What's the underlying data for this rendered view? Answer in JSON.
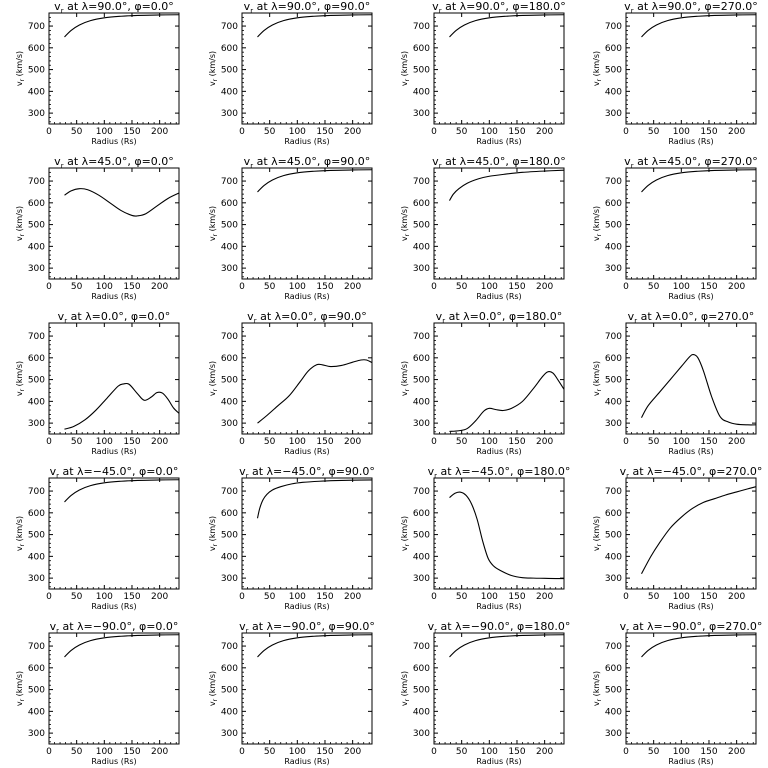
{
  "chart_data": {
    "type": "line",
    "layout": "grid of 5 rows x 4 columns",
    "panel_defaults": {
      "xlabel": "Radius (Rs)",
      "ylabel": "v_r (km/s)",
      "xlim": [
        0,
        235
      ],
      "ylim": [
        250,
        760
      ],
      "xticks": [
        0,
        50,
        100,
        150,
        200
      ],
      "yticks": [
        300,
        400,
        500,
        600,
        700
      ],
      "grid": false,
      "legend": "none"
    },
    "panels": [
      {
        "title": "v_r at λ=90.0°, φ=0.0°",
        "lambda": "90.0",
        "phi": "0.0",
        "x": [
          28,
          40,
          55,
          75,
          100,
          130,
          160,
          200,
          235
        ],
        "y": [
          650,
          680,
          705,
          725,
          738,
          745,
          749,
          751,
          752
        ]
      },
      {
        "title": "v_r at λ=90.0°, φ=90.0°",
        "lambda": "90.0",
        "phi": "90.0",
        "x": [
          28,
          40,
          55,
          75,
          100,
          130,
          160,
          200,
          235
        ],
        "y": [
          650,
          680,
          705,
          725,
          738,
          745,
          749,
          751,
          752
        ]
      },
      {
        "title": "v_r at λ=90.0°, φ=180.0°",
        "lambda": "90.0",
        "phi": "180.0",
        "x": [
          28,
          40,
          55,
          75,
          100,
          130,
          160,
          200,
          235
        ],
        "y": [
          650,
          680,
          705,
          725,
          738,
          745,
          749,
          751,
          752
        ]
      },
      {
        "title": "v_r at λ=90.0°, φ=270.0°",
        "lambda": "90.0",
        "phi": "270.0",
        "x": [
          28,
          40,
          55,
          75,
          100,
          130,
          160,
          200,
          235
        ],
        "y": [
          650,
          680,
          705,
          725,
          738,
          745,
          749,
          751,
          752
        ]
      },
      {
        "title": "v_r at λ=45.0°, φ=0.0°",
        "lambda": "45.0",
        "phi": "0.0",
        "x": [
          28,
          40,
          55,
          70,
          90,
          110,
          130,
          150,
          160,
          175,
          195,
          215,
          235
        ],
        "y": [
          635,
          655,
          665,
          660,
          635,
          600,
          565,
          542,
          540,
          550,
          585,
          620,
          645
        ]
      },
      {
        "title": "v_r at λ=45.0°, φ=90.0°",
        "lambda": "45.0",
        "phi": "90.0",
        "x": [
          28,
          40,
          55,
          75,
          100,
          130,
          160,
          200,
          235
        ],
        "y": [
          650,
          680,
          705,
          725,
          738,
          745,
          749,
          751,
          752
        ]
      },
      {
        "title": "v_r at λ=45.0°, φ=180.0°",
        "lambda": "45.0",
        "phi": "180.0",
        "x": [
          28,
          35,
          45,
          60,
          80,
          100,
          130,
          160,
          200,
          235
        ],
        "y": [
          610,
          640,
          665,
          690,
          710,
          722,
          732,
          740,
          746,
          750
        ]
      },
      {
        "title": "v_r at λ=45.0°, φ=270.0°",
        "lambda": "45.0",
        "phi": "270.0",
        "x": [
          28,
          40,
          55,
          75,
          100,
          130,
          160,
          200,
          235
        ],
        "y": [
          650,
          680,
          705,
          725,
          738,
          745,
          749,
          751,
          752
        ]
      },
      {
        "title": "v_r at λ=0.0°, φ=0.0°",
        "lambda": "0.0",
        "phi": "0.0",
        "x": [
          28,
          45,
          65,
          85,
          105,
          125,
          135,
          145,
          160,
          172,
          185,
          195,
          205,
          215,
          225,
          235
        ],
        "y": [
          272,
          285,
          315,
          360,
          415,
          470,
          480,
          478,
          435,
          405,
          420,
          440,
          438,
          410,
          370,
          345
        ]
      },
      {
        "title": "v_r at λ=0.0°, φ=90.0°",
        "lambda": "0.0",
        "phi": "90.0",
        "x": [
          28,
          45,
          65,
          85,
          105,
          120,
          135,
          145,
          160,
          180,
          200,
          215,
          225,
          235
        ],
        "y": [
          300,
          335,
          380,
          425,
          490,
          540,
          568,
          568,
          560,
          565,
          580,
          590,
          590,
          578
        ]
      },
      {
        "title": "v_r at λ=0.0°, φ=180.0°",
        "lambda": "0.0",
        "phi": "180.0",
        "x": [
          28,
          45,
          60,
          75,
          90,
          100,
          112,
          125,
          140,
          160,
          180,
          195,
          205,
          215,
          225,
          235
        ],
        "y": [
          262,
          265,
          275,
          310,
          355,
          368,
          362,
          358,
          368,
          400,
          460,
          510,
          535,
          530,
          495,
          455
        ]
      },
      {
        "title": "v_r at λ=0.0°, φ=270.0°",
        "lambda": "0.0",
        "phi": "270.0",
        "x": [
          28,
          40,
          60,
          80,
          100,
          115,
          122,
          130,
          140,
          155,
          170,
          185,
          200,
          220,
          235
        ],
        "y": [
          325,
          380,
          440,
          500,
          560,
          605,
          615,
          600,
          540,
          420,
          330,
          305,
          295,
          292,
          292
        ]
      },
      {
        "title": "v_r at λ=−45.0°, φ=0.0°",
        "lambda": "−45.0",
        "phi": "0.0",
        "x": [
          28,
          40,
          55,
          75,
          100,
          130,
          160,
          200,
          235
        ],
        "y": [
          650,
          680,
          705,
          725,
          738,
          745,
          749,
          751,
          752
        ]
      },
      {
        "title": "v_r at λ=−45.0°, φ=90.0°",
        "lambda": "−45.0",
        "phi": "90.0",
        "x": [
          28,
          32,
          38,
          45,
          55,
          70,
          90,
          110,
          140,
          170,
          200,
          235
        ],
        "y": [
          575,
          620,
          660,
          685,
          705,
          720,
          733,
          740,
          745,
          748,
          750,
          751
        ]
      },
      {
        "title": "v_r at λ=−45.0°, φ=180.0°",
        "lambda": "−45.0",
        "phi": "180.0",
        "x": [
          28,
          38,
          48,
          58,
          68,
          78,
          88,
          98,
          108,
          120,
          140,
          160,
          180,
          200,
          220,
          235
        ],
        "y": [
          670,
          690,
          695,
          680,
          640,
          570,
          470,
          390,
          355,
          335,
          312,
          302,
          300,
          299,
          298,
          298
        ]
      },
      {
        "title": "v_r at λ=−45.0°, φ=270.0°",
        "lambda": "−45.0",
        "phi": "270.0",
        "x": [
          28,
          45,
          60,
          80,
          100,
          120,
          140,
          160,
          180,
          200,
          220,
          235
        ],
        "y": [
          320,
          400,
          460,
          530,
          580,
          620,
          648,
          665,
          682,
          696,
          710,
          720
        ]
      },
      {
        "title": "v_r at λ=−90.0°, φ=0.0°",
        "lambda": "−90.0",
        "phi": "0.0",
        "x": [
          28,
          40,
          55,
          75,
          100,
          130,
          160,
          200,
          235
        ],
        "y": [
          650,
          680,
          705,
          725,
          738,
          745,
          749,
          751,
          752
        ]
      },
      {
        "title": "v_r at λ=−90.0°, φ=90.0°",
        "lambda": "−90.0",
        "phi": "90.0",
        "x": [
          28,
          40,
          55,
          75,
          100,
          130,
          160,
          200,
          235
        ],
        "y": [
          650,
          680,
          705,
          725,
          738,
          745,
          749,
          751,
          752
        ]
      },
      {
        "title": "v_r at λ=−90.0°, φ=180.0°",
        "lambda": "−90.0",
        "phi": "180.0",
        "x": [
          28,
          40,
          55,
          75,
          100,
          130,
          160,
          200,
          235
        ],
        "y": [
          650,
          680,
          705,
          725,
          738,
          745,
          749,
          751,
          752
        ]
      },
      {
        "title": "v_r at λ=−90.0°, φ=270.0°",
        "lambda": "−90.0",
        "phi": "270.0",
        "x": [
          28,
          40,
          55,
          75,
          100,
          130,
          160,
          200,
          235
        ],
        "y": [
          650,
          680,
          705,
          725,
          738,
          745,
          749,
          751,
          752
        ]
      }
    ]
  }
}
